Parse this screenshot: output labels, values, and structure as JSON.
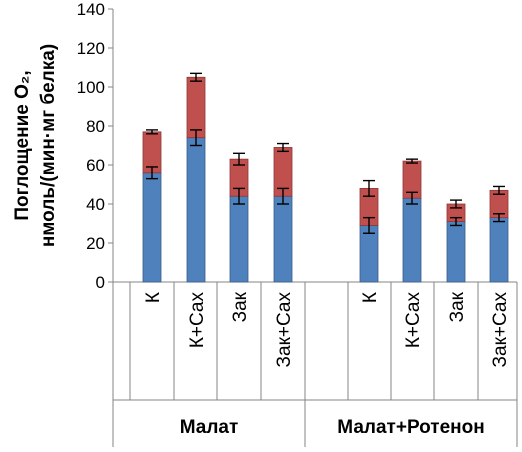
{
  "chart_data": {
    "type": "bar",
    "stacked": true,
    "ylabel_lines": [
      "Поглощение О₂,",
      "нмоль/(мин·мг белка)"
    ],
    "ylim": [
      0,
      140
    ],
    "yticks": [
      0,
      20,
      40,
      60,
      80,
      100,
      120,
      140
    ],
    "groups": [
      {
        "label": "Малат",
        "categories": [
          "К",
          "К+Сах",
          "Зак",
          "Зак+Сах"
        ]
      },
      {
        "label": "Малат+Ротенон",
        "categories": [
          "К",
          "К+Сах",
          "Зак",
          "Зак+Сах"
        ]
      }
    ],
    "series": [
      {
        "color": "#4f81bd",
        "values": [
          56,
          74,
          44,
          44,
          29,
          43,
          31,
          33
        ],
        "errors": [
          3,
          4,
          4,
          4,
          4,
          3,
          2,
          2
        ]
      },
      {
        "color": "#c0504d",
        "values": [
          21,
          31,
          19,
          25,
          19,
          19,
          9,
          14
        ],
        "errors": [
          1,
          2,
          3,
          2,
          4,
          1,
          2,
          2
        ]
      }
    ],
    "grid": false,
    "legend": "none"
  }
}
